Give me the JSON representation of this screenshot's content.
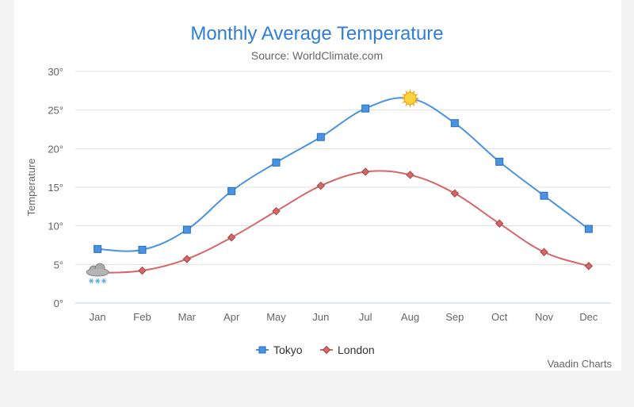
{
  "chart_data": {
    "type": "line",
    "title": "Monthly Average Temperature",
    "subtitle": "Source: WorldClimate.com",
    "ylabel": "Temperature",
    "xlabel": "",
    "categories": [
      "Jan",
      "Feb",
      "Mar",
      "Apr",
      "May",
      "Jun",
      "Jul",
      "Aug",
      "Sep",
      "Oct",
      "Nov",
      "Dec"
    ],
    "ylim": [
      0,
      30
    ],
    "yticks": [
      0,
      5,
      10,
      15,
      20,
      25,
      30
    ],
    "ytick_suffix": "°",
    "grid": true,
    "legend_placement": "bottom-center",
    "series": [
      {
        "name": "Tokyo",
        "color": "#4a93e2",
        "marker": "square",
        "values": [
          7.0,
          6.9,
          9.5,
          14.5,
          18.2,
          21.5,
          25.2,
          26.5,
          23.3,
          18.3,
          13.9,
          9.6
        ],
        "special_markers": [
          {
            "index": 7,
            "icon": "sun-icon"
          }
        ]
      },
      {
        "name": "London",
        "color": "#d96666",
        "marker": "diamond",
        "values": [
          3.9,
          4.2,
          5.7,
          8.5,
          11.9,
          15.2,
          17.0,
          16.6,
          14.2,
          10.3,
          6.6,
          4.8
        ],
        "special_markers": [
          {
            "index": 0,
            "icon": "snow-cloud-icon"
          }
        ]
      }
    ]
  },
  "credits": "Vaadin Charts"
}
